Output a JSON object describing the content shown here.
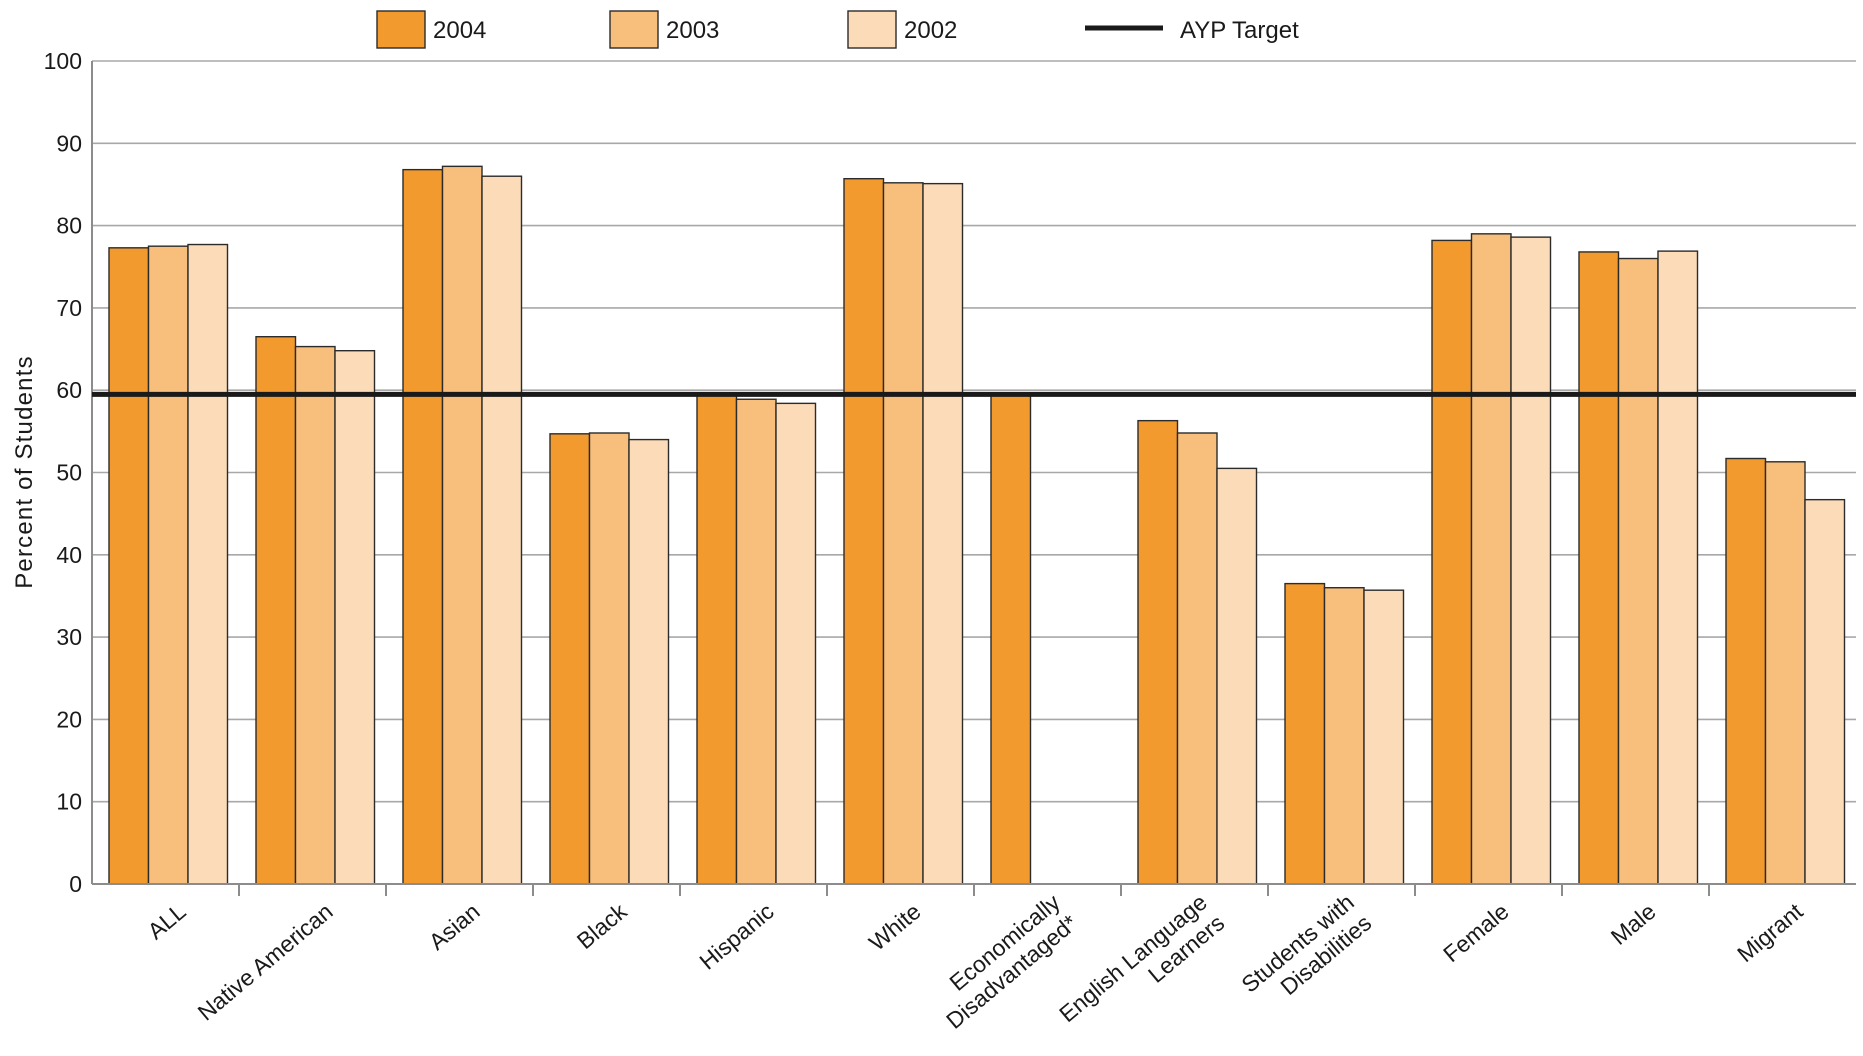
{
  "chart_data": {
    "type": "bar",
    "ylabel": "Percent of Students",
    "xlabel": "",
    "ylim": [
      0,
      100
    ],
    "yticks": [
      0,
      10,
      20,
      30,
      40,
      50,
      60,
      70,
      80,
      90,
      100
    ],
    "grid": true,
    "legend_position": "top",
    "categories": [
      [
        "ALL"
      ],
      [
        "Native American"
      ],
      [
        "Asian"
      ],
      [
        "Black"
      ],
      [
        "Hispanic"
      ],
      [
        "White"
      ],
      [
        "Economically",
        "Disadvantaged*"
      ],
      [
        "English Language",
        "Learners"
      ],
      [
        "Students with",
        "Disabilities"
      ],
      [
        "Female"
      ],
      [
        "Male"
      ],
      [
        "Migrant"
      ]
    ],
    "series": [
      {
        "name": "2004",
        "color": "#f29a2e",
        "values": [
          77.3,
          66.5,
          86.8,
          54.7,
          59.4,
          85.7,
          59.5,
          56.3,
          36.5,
          78.2,
          76.8,
          51.7
        ]
      },
      {
        "name": "2003",
        "color": "#f7be7c",
        "values": [
          77.5,
          65.3,
          87.2,
          54.8,
          58.9,
          85.2,
          null,
          54.8,
          36.0,
          79.0,
          76.0,
          51.3
        ]
      },
      {
        "name": "2002",
        "color": "#fcdcb8",
        "values": [
          77.7,
          64.8,
          86.0,
          54.0,
          58.4,
          85.1,
          null,
          50.5,
          35.7,
          78.6,
          76.9,
          46.7
        ]
      }
    ],
    "reference_line": {
      "name": "AYP Target",
      "value": 59.5,
      "color": "#1a1a1a"
    }
  }
}
